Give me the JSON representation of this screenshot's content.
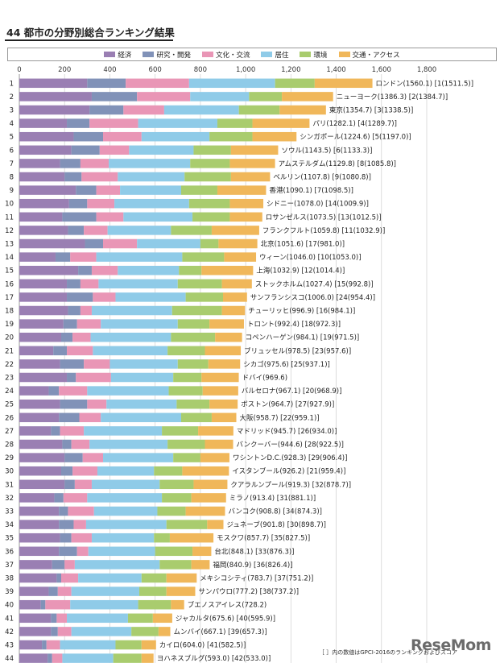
{
  "chart_data": {
    "type": "bar",
    "stacked": true,
    "orientation": "horizontal",
    "title": "44 都市の分野別総合ランキング結果",
    "xlim": [
      0,
      1800
    ],
    "xticks": [
      0,
      200,
      400,
      600,
      800,
      1000,
      1200,
      1400,
      1600,
      1800
    ],
    "xtick_labels": [
      "0",
      "200",
      "400",
      "600",
      "800",
      "1,000",
      "1,200",
      "1,400",
      "1,600",
      "1,800"
    ],
    "grid": true,
    "legend_position": "top",
    "series": [
      {
        "name": "経済",
        "color": "#9a7fb3"
      },
      {
        "name": "研究・開発",
        "color": "#8192b8"
      },
      {
        "name": "文化・交流",
        "color": "#e996b6"
      },
      {
        "name": "居住",
        "color": "#8fcbe8"
      },
      {
        "name": "環境",
        "color": "#a9cc6e"
      },
      {
        "name": "交通・アクセス",
        "color": "#f0b75a"
      }
    ],
    "rows": [
      {
        "rank": "1",
        "label": "ロンドン(1560.1) [1(1511.5)]",
        "total": 1560.1,
        "values": [
          300,
          170,
          280,
          380,
          175,
          255.1
        ]
      },
      {
        "rank": "2",
        "label": "ニューヨーク(1386.3) [2(1384.7)]",
        "total": 1386.3,
        "values": [
          320,
          200,
          235,
          260,
          145,
          226.3
        ]
      },
      {
        "rank": "3",
        "label": "東京(1354.7) [3(1338.5)]",
        "total": 1354.7,
        "values": [
          310,
          150,
          180,
          330,
          180,
          204.7
        ]
      },
      {
        "rank": "4",
        "label": "パリ(1282.1) [4(1289.7)]",
        "total": 1282.1,
        "values": [
          210,
          100,
          215,
          350,
          155,
          252.1
        ]
      },
      {
        "rank": "5",
        "label": "シンガポール(1224.6) [5(1197.0)]",
        "total": 1224.6,
        "values": [
          240,
          130,
          170,
          300,
          190,
          194.6
        ]
      },
      {
        "rank": "6",
        "label": "ソウル(1143.5) [6(1133.3)]",
        "total": 1143.5,
        "values": [
          230,
          125,
          130,
          285,
          165,
          208.5
        ]
      },
      {
        "rank": "7",
        "label": "アムステルダム(1129.8) [8(1085.8)]",
        "total": 1129.8,
        "values": [
          180,
          90,
          125,
          360,
          175,
          199.8
        ]
      },
      {
        "rank": "8",
        "label": "ベルリン(1107.8) [9(1080.8)]",
        "total": 1107.8,
        "values": [
          200,
          75,
          160,
          295,
          205,
          172.8
        ]
      },
      {
        "rank": "9",
        "label": "香港(1090.1) [7(1098.5)]",
        "total": 1090.1,
        "values": [
          250,
          90,
          105,
          270,
          160,
          215.1
        ]
      },
      {
        "rank": "10",
        "label": "シドニー(1078.0) [14(1009.9)]",
        "total": 1078.0,
        "values": [
          220,
          80,
          120,
          330,
          180,
          148
        ]
      },
      {
        "rank": "11",
        "label": "ロサンゼルス(1073.5) [13(1012.5)]",
        "total": 1073.5,
        "values": [
          190,
          150,
          120,
          305,
          165,
          143.5
        ]
      },
      {
        "rank": "12",
        "label": "フランクフルト(1059.8) [11(1032.9)]",
        "total": 1059.8,
        "values": [
          215,
          70,
          105,
          280,
          180,
          209.8
        ]
      },
      {
        "rank": "13",
        "label": "北京(1051.6) [17(981.0)]",
        "total": 1051.6,
        "values": [
          290,
          80,
          150,
          280,
          80,
          171.6
        ]
      },
      {
        "rank": "14",
        "label": "ウィーン(1046.0) [10(1053.0)]",
        "total": 1046.0,
        "values": [
          160,
          65,
          115,
          380,
          185,
          141
        ]
      },
      {
        "rank": "15",
        "label": "上海(1032.9) [12(1014.4)]",
        "total": 1032.9,
        "values": [
          260,
          60,
          115,
          270,
          100,
          227.9
        ]
      },
      {
        "rank": "16",
        "label": "ストックホルム(1027.4) [15(992.8)]",
        "total": 1027.4,
        "values": [
          210,
          60,
          80,
          350,
          195,
          132.4
        ]
      },
      {
        "rank": "17",
        "label": "サンフランシスコ(1006.0) [24(954.4)]",
        "total": 1006.0,
        "values": [
          210,
          115,
          100,
          310,
          165,
          106
        ]
      },
      {
        "rank": "18",
        "label": "チューリッヒ(996.9) [16(984.1)]",
        "total": 996.9,
        "values": [
          215,
          55,
          50,
          355,
          220,
          101.9
        ]
      },
      {
        "rank": "19",
        "label": "トロント(992.4) [18(972.3)]",
        "total": 992.4,
        "values": [
          195,
          60,
          105,
          340,
          140,
          152.4
        ]
      },
      {
        "rank": "20",
        "label": "コペンハーゲン(984.1) [19(971.5)]",
        "total": 984.1,
        "values": [
          185,
          50,
          80,
          355,
          195,
          119.1
        ]
      },
      {
        "rank": "21",
        "label": "ブリュッセル(978.5) [23(957.6)]",
        "total": 978.5,
        "values": [
          150,
          60,
          115,
          330,
          165,
          158.5
        ]
      },
      {
        "rank": "22",
        "label": "シカゴ(975.6) [25(937.1)]",
        "total": 975.6,
        "values": [
          180,
          105,
          115,
          300,
          135,
          140.6
        ]
      },
      {
        "rank": "23",
        "label": "ドバイ(969.6)",
        "total": 969.6,
        "values": [
          210,
          40,
          155,
          275,
          125,
          164.6
        ]
      },
      {
        "rank": "24",
        "label": "バルセロナ(967.1) [20(968.9)]",
        "total": 967.1,
        "values": [
          130,
          45,
          125,
          360,
          150,
          157.1
        ]
      },
      {
        "rank": "25",
        "label": "ボストン(964.7) [27(927.9)]",
        "total": 964.7,
        "values": [
          180,
          120,
          85,
          310,
          145,
          124.7
        ]
      },
      {
        "rank": "26",
        "label": "大阪(958.7) [22(959.1)]",
        "total": 958.7,
        "values": [
          175,
          90,
          95,
          355,
          135,
          108.7
        ]
      },
      {
        "rank": "27",
        "label": "マドリッド(945.7) [26(934.0)]",
        "total": 945.7,
        "values": [
          140,
          40,
          105,
          345,
          160,
          155.7
        ]
      },
      {
        "rank": "28",
        "label": "バンクーバー(944.6) [28(922.5)]",
        "total": 944.6,
        "values": [
          190,
          40,
          80,
          345,
          165,
          124.6
        ]
      },
      {
        "rank": "29",
        "label": "ワシントンD.C.(928.3) [29(906.4)]",
        "total": 928.3,
        "values": [
          200,
          80,
          90,
          310,
          120,
          128.3
        ]
      },
      {
        "rank": "30",
        "label": "イスタンブール(926.2) [21(959.4)]",
        "total": 926.2,
        "values": [
          185,
          50,
          110,
          250,
          125,
          206.2
        ]
      },
      {
        "rank": "31",
        "label": "クアラルンプール(919.3) [32(878.7)]",
        "total": 919.3,
        "values": [
          200,
          45,
          75,
          300,
          150,
          149.3
        ]
      },
      {
        "rank": "32",
        "label": "ミラノ(913.4) [31(881.1)]",
        "total": 913.4,
        "values": [
          155,
          40,
          105,
          330,
          130,
          153.4
        ]
      },
      {
        "rank": "33",
        "label": "バンコク(908.8) [34(874.3)]",
        "total": 908.8,
        "values": [
          175,
          40,
          115,
          280,
          125,
          173.8
        ]
      },
      {
        "rank": "34",
        "label": "ジュネーブ(901.8) [30(898.7)]",
        "total": 901.8,
        "values": [
          175,
          65,
          55,
          355,
          180,
          71.8
        ]
      },
      {
        "rank": "35",
        "label": "モスクワ(857.7) [35(827.5)]",
        "total": 857.7,
        "values": [
          180,
          50,
          90,
          275,
          70,
          192.7
        ]
      },
      {
        "rank": "36",
        "label": "台北(848.1) [33(876.3)]",
        "total": 848.1,
        "values": [
          175,
          80,
          50,
          295,
          165,
          83.1
        ]
      },
      {
        "rank": "37",
        "label": "福岡(840.9) [36(826.4)]",
        "total": 840.9,
        "values": [
          145,
          55,
          45,
          375,
          140,
          80.9
        ]
      },
      {
        "rank": "38",
        "label": "メキシコシティ(783.7) [37(751.2)]",
        "total": 783.7,
        "values": [
          165,
          20,
          75,
          280,
          110,
          133.7
        ]
      },
      {
        "rank": "39",
        "label": "サンパウロ(777.2) [38(737.2)]",
        "total": 777.2,
        "values": [
          130,
          40,
          60,
          300,
          120,
          127.2
        ]
      },
      {
        "rank": "40",
        "label": "ブエノスアイレス(728.2)",
        "total": 728.2,
        "values": [
          95,
          20,
          110,
          300,
          145,
          58.2
        ]
      },
      {
        "rank": "41",
        "label": "ジャカルタ(675.6) [40(595.9)]",
        "total": 675.6,
        "values": [
          140,
          25,
          45,
          270,
          110,
          85.6
        ]
      },
      {
        "rank": "42",
        "label": "ムンバイ(667.1) [39(657.3)]",
        "total": 667.1,
        "values": [
          140,
          30,
          60,
          265,
          120,
          52.1
        ]
      },
      {
        "rank": "43",
        "label": "カイロ(604.0) [41(582.5)]",
        "total": 604.0,
        "values": [
          100,
          20,
          60,
          245,
          115,
          64
        ]
      },
      {
        "rank": "44",
        "label": "ヨハネスブルグ(593.0) [42(533.0)]",
        "total": 593.0,
        "values": [
          125,
          20,
          45,
          225,
          125,
          53
        ]
      }
    ]
  },
  "footnote": "［ ］内の数値はGPCI-2016のランキングおよびスコア",
  "logo_text": "ReseMom"
}
